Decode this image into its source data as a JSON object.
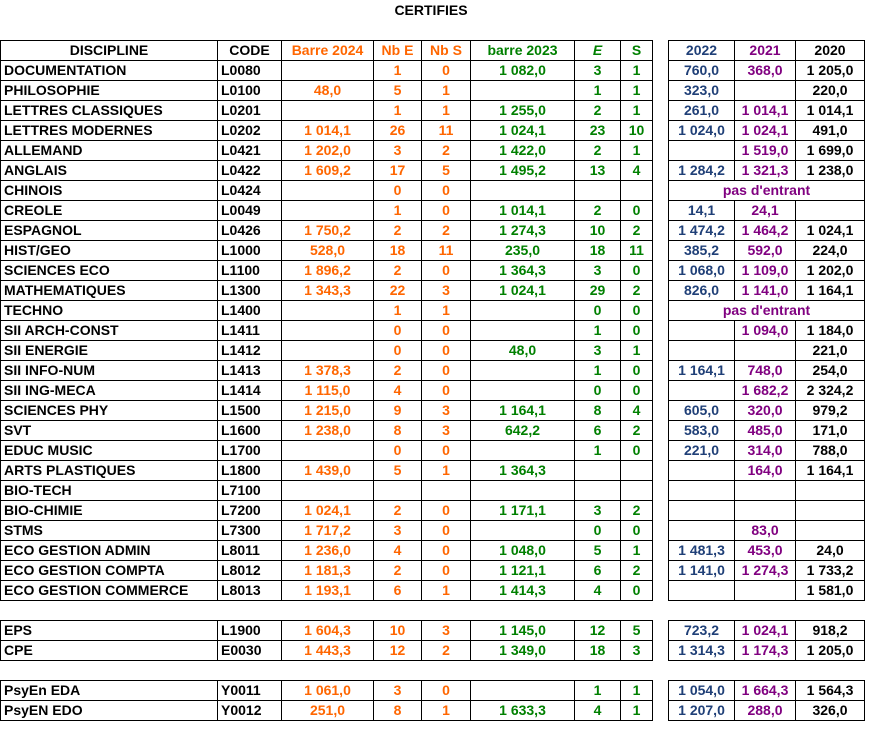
{
  "title": "CERTIFIES",
  "table": {
    "main_header": [
      "DISCIPLINE",
      "CODE",
      "Barre 2024",
      "Nb E",
      "Nb S",
      "barre 2023",
      "E",
      "S"
    ],
    "hist_header": [
      "2022",
      "2021",
      "2020"
    ],
    "groups": [
      {
        "rows": [
          {
            "main": [
              "DOCUMENTATION",
              "L0080",
              null,
              "1",
              "0",
              "1 082,0",
              "3",
              "1"
            ],
            "hist": [
              "760,0",
              "368,0",
              "1 205,0"
            ]
          },
          {
            "main": [
              "PHILOSOPHIE",
              "L0100",
              "48,0",
              "5",
              "1",
              null,
              "1",
              "1"
            ],
            "hist": [
              "323,0",
              null,
              "220,0"
            ]
          },
          {
            "main": [
              "LETTRES CLASSIQUES",
              "L0201",
              null,
              "1",
              "1",
              "1 255,0",
              "2",
              "1"
            ],
            "hist": [
              "261,0",
              "1 014,1",
              "1 014,1"
            ]
          },
          {
            "main": [
              "LETTRES MODERNES",
              "L0202",
              "1 014,1",
              "26",
              "11",
              "1 024,1",
              "23",
              "10"
            ],
            "hist": [
              "1 024,0",
              "1 024,1",
              "491,0"
            ]
          },
          {
            "main": [
              "ALLEMAND",
              "L0421",
              "1 202,0",
              "3",
              "2",
              "1 422,0",
              "2",
              "1"
            ],
            "hist": [
              null,
              "1 519,0",
              "1 699,0"
            ]
          },
          {
            "main": [
              "ANGLAIS",
              "L0422",
              "1 609,2",
              "17",
              "5",
              "1 495,2",
              "13",
              "4"
            ],
            "hist": [
              "1 284,2",
              "1 321,3",
              "1 238,0"
            ]
          },
          {
            "main": [
              "CHINOIS",
              "L0424",
              null,
              "0",
              "0",
              null,
              null,
              null
            ],
            "hist_note": "pas d'entrant"
          },
          {
            "main": [
              "CREOLE",
              "L0049",
              null,
              "1",
              "0",
              "1 014,1",
              "2",
              "0"
            ],
            "hist": [
              "14,1",
              "24,1",
              null
            ]
          },
          {
            "main": [
              "ESPAGNOL",
              "L0426",
              "1 750,2",
              "2",
              "2",
              "1 274,3",
              "10",
              "2"
            ],
            "hist": [
              "1 474,2",
              "1 464,2",
              "1 024,1"
            ]
          },
          {
            "main": [
              "HIST/GEO",
              "L1000",
              "528,0",
              "18",
              "11",
              "235,0",
              "18",
              "11"
            ],
            "hist": [
              "385,2",
              "592,0",
              "224,0"
            ]
          },
          {
            "main": [
              "SCIENCES ECO",
              "L1100",
              "1 896,2",
              "2",
              "0",
              "1 364,3",
              "3",
              "0"
            ],
            "hist": [
              "1 068,0",
              "1 109,0",
              "1 202,0"
            ]
          },
          {
            "main": [
              "MATHEMATIQUES",
              "L1300",
              "1 343,3",
              "22",
              "3",
              "1 024,1",
              "29",
              "2"
            ],
            "hist": [
              "826,0",
              "1 141,0",
              "1 164,1"
            ]
          },
          {
            "main": [
              "TECHNO",
              "L1400",
              null,
              "1",
              "1",
              null,
              "0",
              "0"
            ],
            "hist_note": "pas d'entrant"
          },
          {
            "main": [
              "SII ARCH-CONST",
              "L1411",
              null,
              "0",
              "0",
              null,
              "1",
              "0"
            ],
            "hist": [
              null,
              "1 094,0",
              "1 184,0"
            ]
          },
          {
            "main": [
              "SII ENERGIE",
              "L1412",
              null,
              "0",
              "0",
              "48,0",
              "3",
              "1"
            ],
            "hist": [
              null,
              null,
              "221,0"
            ]
          },
          {
            "main": [
              "SII INFO-NUM",
              "L1413",
              "1 378,3",
              "2",
              "0",
              null,
              "1",
              "0"
            ],
            "hist": [
              "1 164,1",
              "748,0",
              "254,0"
            ]
          },
          {
            "main": [
              "SII ING-MECA",
              "L1414",
              "1 115,0",
              "4",
              "0",
              null,
              "0",
              "0"
            ],
            "hist": [
              null,
              "1 682,2",
              "2 324,2"
            ]
          },
          {
            "main": [
              "SCIENCES PHY",
              "L1500",
              "1 215,0",
              "9",
              "3",
              "1 164,1",
              "8",
              "4"
            ],
            "hist": [
              "605,0",
              "320,0",
              "979,2"
            ]
          },
          {
            "main": [
              "SVT",
              "L1600",
              "1 238,0",
              "8",
              "3",
              "642,2",
              "6",
              "2"
            ],
            "hist": [
              "583,0",
              "485,0",
              "171,0"
            ]
          },
          {
            "main": [
              "EDUC MUSIC",
              "L1700",
              null,
              "0",
              "0",
              null,
              "1",
              "0"
            ],
            "hist": [
              "221,0",
              "314,0",
              "788,0"
            ]
          },
          {
            "main": [
              "ARTS PLASTIQUES",
              "L1800",
              "1 439,0",
              "5",
              "1",
              "1 364,3",
              null,
              null
            ],
            "hist": [
              null,
              "164,0",
              "1 164,1"
            ]
          },
          {
            "main": [
              "BIO-TECH",
              "L7100",
              null,
              null,
              null,
              null,
              null,
              null
            ],
            "hist": [
              null,
              null,
              null
            ]
          },
          {
            "main": [
              "BIO-CHIMIE",
              "L7200",
              "1 024,1",
              "2",
              "0",
              "1 171,1",
              "3",
              "2"
            ],
            "hist": [
              null,
              null,
              null
            ]
          },
          {
            "main": [
              "STMS",
              "L7300",
              "1 717,2",
              "3",
              "0",
              null,
              "0",
              "0"
            ],
            "hist": [
              null,
              "83,0",
              null
            ]
          },
          {
            "main": [
              "ECO GESTION ADMIN",
              "L8011",
              "1 236,0",
              "4",
              "0",
              "1 048,0",
              "5",
              "1"
            ],
            "hist": [
              "1 481,3",
              "453,0",
              "24,0"
            ]
          },
          {
            "main": [
              "ECO GESTION COMPTA",
              "L8012",
              "1 181,3",
              "2",
              "0",
              "1 121,1",
              "6",
              "2"
            ],
            "hist": [
              "1 141,0",
              "1 274,3",
              "1 733,2"
            ]
          },
          {
            "main": [
              "ECO GESTION COMMERCE",
              "L8013",
              "1 193,1",
              "6",
              "1",
              "1 414,3",
              "4",
              "0"
            ],
            "hist": [
              null,
              null,
              "1 581,0"
            ]
          }
        ]
      },
      {
        "rows": [
          {
            "main": [
              "EPS",
              "L1900",
              "1 604,3",
              "10",
              "3",
              "1 145,0",
              "12",
              "5"
            ],
            "hist": [
              "723,2",
              "1 024,1",
              "918,2"
            ]
          },
          {
            "main": [
              "CPE",
              "E0030",
              "1 443,3",
              "12",
              "2",
              "1 349,0",
              "18",
              "3"
            ],
            "hist": [
              "1 314,3",
              "1 174,3",
              "1 205,0"
            ]
          }
        ]
      },
      {
        "rows": [
          {
            "main": [
              "PsyEn EDA",
              "Y0011",
              "1 061,0",
              "3",
              "0",
              null,
              "1",
              "1"
            ],
            "hist": [
              "1 054,0",
              "1 664,3",
              "1 564,3"
            ]
          },
          {
            "main": [
              "PsyEN EDO",
              "Y0012",
              "251,0",
              "8",
              "1",
              "1 633,3",
              "4",
              "1"
            ],
            "hist": [
              "1 207,0",
              "288,0",
              "326,0"
            ]
          }
        ]
      }
    ]
  }
}
